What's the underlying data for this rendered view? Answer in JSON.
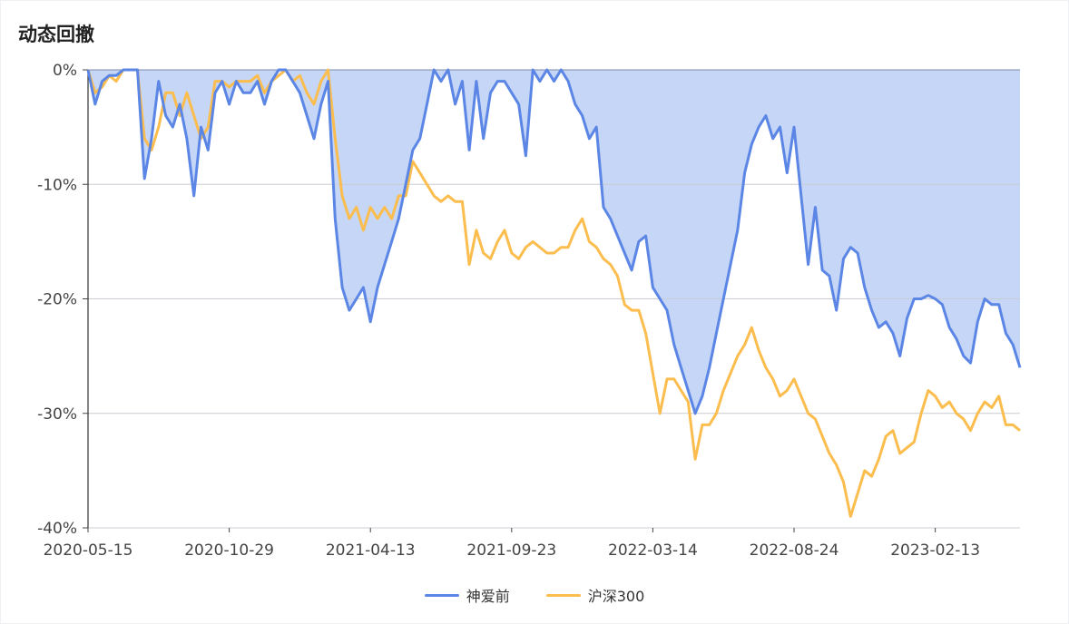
{
  "chart_data": {
    "type": "area",
    "title": "动态回撤",
    "ylim": [
      -40,
      0
    ],
    "yticks": [
      "0%",
      "-10%",
      "-20%",
      "-30%",
      "-40%"
    ],
    "ytick_values": [
      0,
      -10,
      -20,
      -30,
      -40
    ],
    "xticks": [
      "2020-05-15",
      "2020-10-29",
      "2021-04-13",
      "2021-09-23",
      "2022-03-14",
      "2022-08-24",
      "2023-02-13"
    ],
    "grid": true,
    "legend_position": "bottom",
    "series": [
      {
        "name": "神爱前",
        "color": "#5b86e5",
        "fill": "#c6d6f6",
        "values": [
          0,
          -3,
          -1,
          -0.5,
          -0.5,
          0,
          0,
          0,
          -9.5,
          -6,
          -1,
          -4,
          -5,
          -3,
          -6,
          -11,
          -5,
          -7,
          -2,
          -1,
          -3,
          -1,
          -2,
          -2,
          -1,
          -3,
          -1,
          0,
          0,
          -1,
          -2,
          -4,
          -6,
          -3,
          -1,
          -13,
          -19,
          -21,
          -20,
          -19,
          -22,
          -19,
          -17,
          -15,
          -13,
          -10,
          -7,
          -6,
          -3,
          0,
          -1,
          0,
          -3,
          -1,
          -7,
          -1,
          -6,
          -2,
          -1,
          -1,
          -2,
          -3,
          -7.5,
          0,
          -1,
          0,
          -1,
          0,
          -1,
          -3,
          -4,
          -6,
          -5,
          -12,
          -13,
          -14.5,
          -16,
          -17.5,
          -15,
          -14.5,
          -19,
          -20,
          -21,
          -24,
          -26,
          -28,
          -30,
          -28.5,
          -26,
          -23,
          -20,
          -17,
          -14,
          -9,
          -6.5,
          -5,
          -4,
          -6,
          -5,
          -9,
          -5,
          -11,
          -17,
          -12,
          -17.5,
          -18,
          -21,
          -16.5,
          -15.5,
          -16,
          -19,
          -21,
          -22.5,
          -22,
          -23,
          -25,
          -21.7,
          -20,
          -20,
          -19.7,
          -20,
          -20.5,
          -22.5,
          -23.5,
          -25,
          -25.6,
          -22,
          -20,
          -20.5,
          -20.5,
          -23,
          -24,
          -26
        ]
      },
      {
        "name": "沪深300",
        "color": "#fbbd4e",
        "values": [
          0,
          -2,
          -1.5,
          -0.5,
          -1,
          0,
          0,
          0,
          -6,
          -7,
          -5,
          -2,
          -2,
          -4,
          -2,
          -4,
          -6,
          -5,
          -1,
          -1,
          -1.5,
          -1,
          -1,
          -1,
          -0.5,
          -2,
          -1,
          -0.5,
          0,
          -1,
          -0.5,
          -2,
          -3,
          -1,
          0,
          -6,
          -11,
          -13,
          -12,
          -14,
          -12,
          -13,
          -12,
          -13,
          -11,
          -11,
          -8,
          -9,
          -10,
          -11,
          -11.5,
          -11,
          -11.5,
          -11.5,
          -17,
          -14,
          -16,
          -16.5,
          -15,
          -14,
          -16,
          -16.5,
          -15.5,
          -15,
          -15.5,
          -16,
          -16,
          -15.5,
          -15.5,
          -14,
          -13,
          -15,
          -15.5,
          -16.5,
          -17,
          -18,
          -20.5,
          -21,
          -21,
          -23,
          -26.5,
          -30,
          -27,
          -27,
          -28,
          -29,
          -34,
          -31,
          -31,
          -30,
          -28,
          -26.5,
          -25,
          -24,
          -22.5,
          -24.5,
          -26,
          -27,
          -28.5,
          -28,
          -27,
          -28.5,
          -30,
          -30.5,
          -32,
          -33.5,
          -34.5,
          -36,
          -39,
          -37,
          -35,
          -35.5,
          -34,
          -32,
          -31.5,
          -33.5,
          -33,
          -32.5,
          -30,
          -28,
          -28.5,
          -29.5,
          -29,
          -30,
          -30.5,
          -31.5,
          -30,
          -29,
          -29.5,
          -28.5,
          -31,
          -31,
          -31.5
        ]
      }
    ]
  }
}
